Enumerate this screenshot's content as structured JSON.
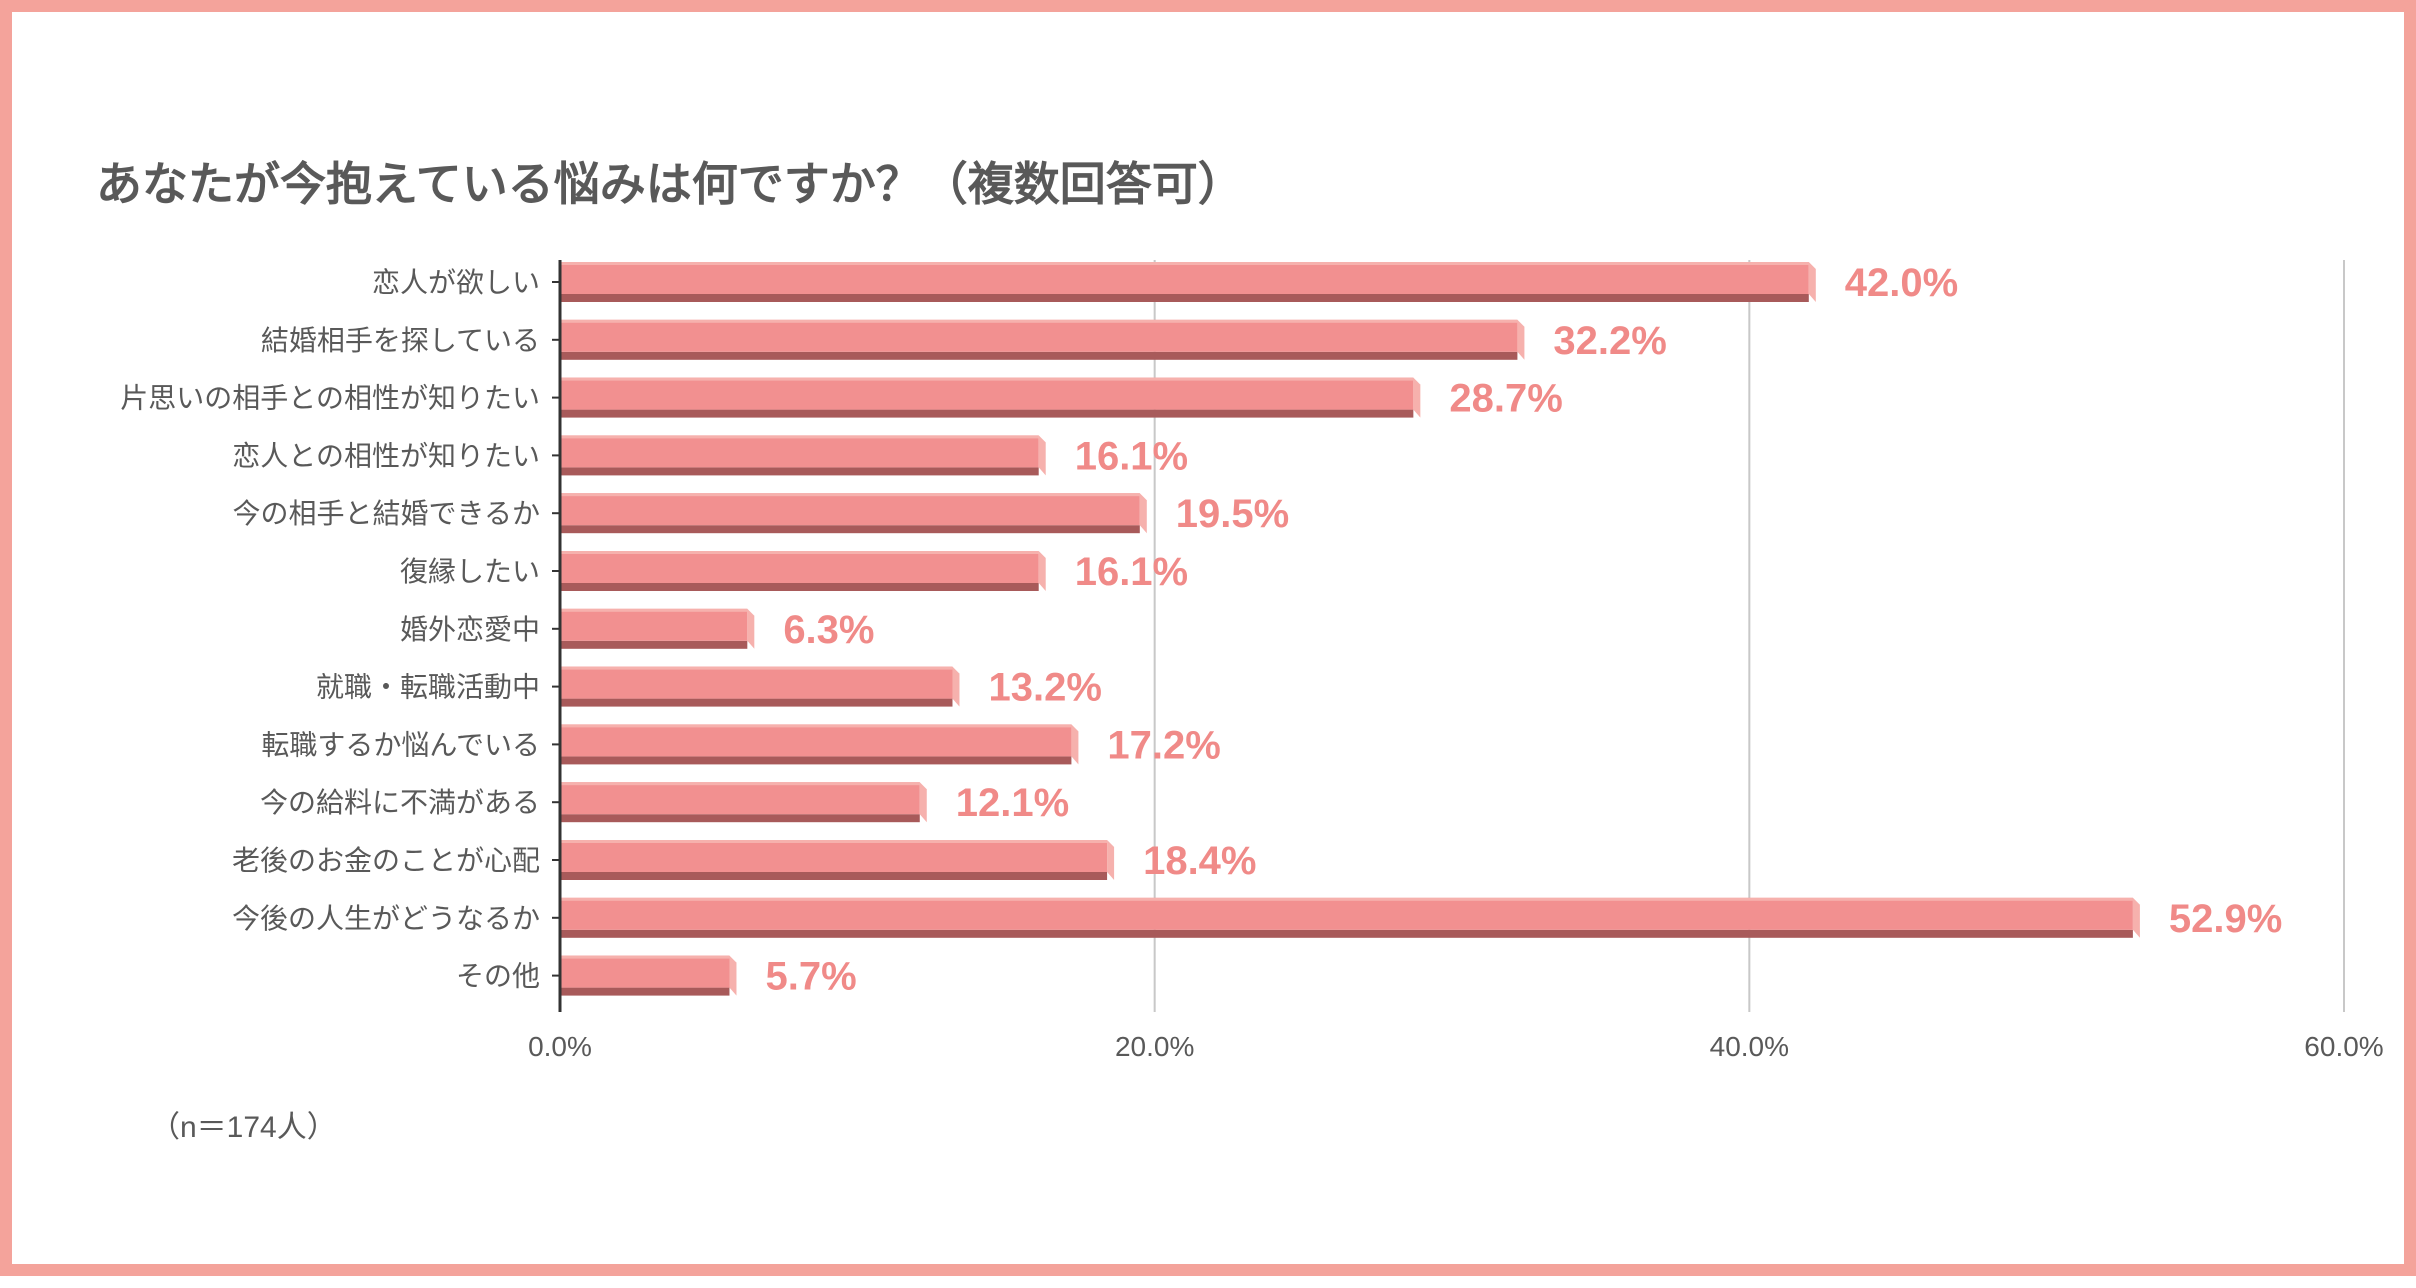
{
  "chart_data": {
    "type": "bar",
    "orientation": "horizontal",
    "title": "あなたが今抱えている悩みは何ですか？（複数回答可）",
    "note": "（n＝174人）",
    "categories": [
      "恋人が欲しい",
      "結婚相手を探している",
      "片思いの相手との相性が知りたい",
      "恋人との相性が知りたい",
      "今の相手と結婚できるか",
      "復縁したい",
      "婚外恋愛中",
      "就職・転職活動中",
      "転職するか悩んでいる",
      "今の給料に不満がある",
      "老後のお金のことが心配",
      "今後の人生がどうなるか",
      "その他"
    ],
    "values": [
      42.0,
      32.2,
      28.7,
      16.1,
      19.5,
      16.1,
      6.3,
      13.2,
      17.2,
      12.1,
      18.4,
      52.9,
      5.7
    ],
    "value_labels": [
      "42.0%",
      "32.2%",
      "28.7%",
      "16.1%",
      "19.5%",
      "16.1%",
      "6.3%",
      "13.2%",
      "17.2%",
      "12.1%",
      "18.4%",
      "52.9%",
      "5.7%"
    ],
    "xlim": [
      0,
      60
    ],
    "xticks": [
      0,
      20,
      40,
      60
    ],
    "xtick_labels": [
      "0.0%",
      "20.0%",
      "40.0%",
      "60.0%"
    ],
    "grid": true,
    "colors": {
      "bar_front": "#f29090",
      "bar_top": "#f6b1ad",
      "bar_side": "#f6b1ad",
      "bar_bottom": "#a85a5a",
      "value_label": "#f08a88",
      "grid": "#c8c8c8",
      "axis": "#333333",
      "text": "#595959",
      "frame": "#f4a39b"
    }
  }
}
